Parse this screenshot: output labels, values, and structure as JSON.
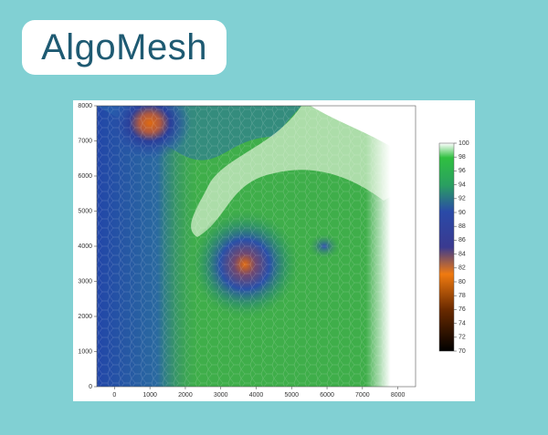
{
  "logo": "AlgoMesh",
  "chart_data": {
    "type": "contour",
    "xlim": [
      -500,
      8500
    ],
    "xticks": [
      0,
      1000,
      2000,
      3000,
      4000,
      5000,
      6000,
      7000,
      8000
    ],
    "ylim": [
      0,
      8000
    ],
    "yticks": [
      0,
      1000,
      2000,
      3000,
      4000,
      5000,
      6000,
      7000,
      8000
    ],
    "colorbar_lim": [
      70,
      100
    ],
    "colorbar_ticks": [
      70,
      72,
      74,
      76,
      78,
      80,
      82,
      84,
      86,
      88,
      90,
      92,
      94,
      96,
      98,
      100
    ]
  }
}
